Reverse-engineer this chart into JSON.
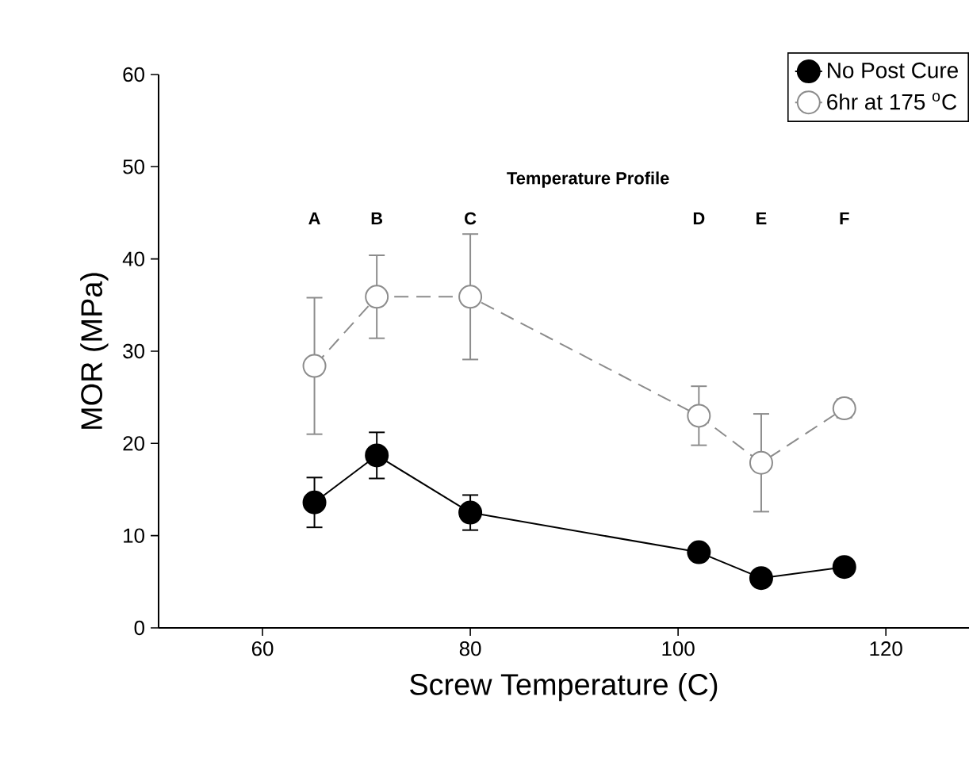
{
  "chart_data": {
    "type": "line",
    "xlabel": "Screw Temperature (C)",
    "ylabel": "MOR (MPa)",
    "x": [
      65,
      71,
      80,
      102,
      108,
      116
    ],
    "series": [
      {
        "name": "No Post Cure",
        "color": "#000000",
        "values": [
          13.6,
          18.7,
          12.5,
          8.2,
          5.4,
          6.6
        ],
        "errors": [
          2.7,
          2.5,
          1.9,
          null,
          null,
          null
        ],
        "line_style": "solid"
      },
      {
        "name": "6hr at 175 $^{o}$C",
        "color": "#8c8c8c",
        "values": [
          28.4,
          35.9,
          35.9,
          23.0,
          17.9,
          23.8
        ],
        "errors": [
          7.4,
          4.5,
          6.8,
          3.2,
          5.3,
          1.0
        ],
        "line_style": "dashed"
      }
    ],
    "xlim": [
      50,
      128
    ],
    "xticks": [
      60,
      80,
      100,
      120
    ],
    "ylim": [
      0,
      60
    ],
    "yticks": [
      0,
      10,
      20,
      30,
      40,
      50,
      60
    ],
    "marker": "circle",
    "legend": "top right",
    "grid": false,
    "annotations": [
      "Temperature Profile",
      "A",
      "B",
      "C",
      "D",
      "E",
      "F"
    ]
  }
}
